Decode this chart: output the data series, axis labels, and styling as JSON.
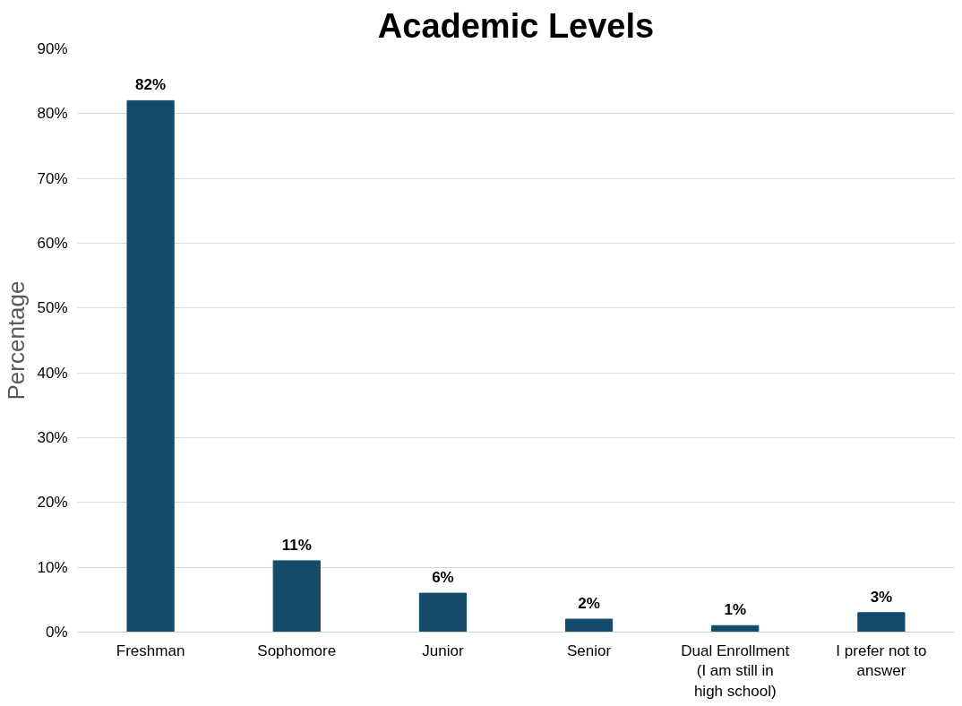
{
  "chart_data": {
    "type": "bar",
    "title": "Academic Levels",
    "ylabel": "Percentage",
    "categories": [
      "Freshman",
      "Sophomore",
      "Junior",
      "Senior",
      "Dual Enrollment (I am still in high school)",
      "I prefer not to answer"
    ],
    "values": [
      82,
      11,
      6,
      2,
      1,
      3
    ],
    "value_labels": [
      "82%",
      "11%",
      "6%",
      "2%",
      "1%",
      "3%"
    ],
    "color": "#154a6b",
    "ylim": [
      0,
      90
    ],
    "yticks": [
      {
        "value": 0,
        "label": "0%"
      },
      {
        "value": 10,
        "label": "10%"
      },
      {
        "value": 20,
        "label": "20%"
      },
      {
        "value": 30,
        "label": "30%"
      },
      {
        "value": 40,
        "label": "40%"
      },
      {
        "value": 50,
        "label": "50%"
      },
      {
        "value": 60,
        "label": "60%"
      },
      {
        "value": 70,
        "label": "70%"
      },
      {
        "value": 80,
        "label": "80%"
      },
      {
        "value": 90,
        "label": "90%"
      }
    ],
    "grid": "y"
  }
}
